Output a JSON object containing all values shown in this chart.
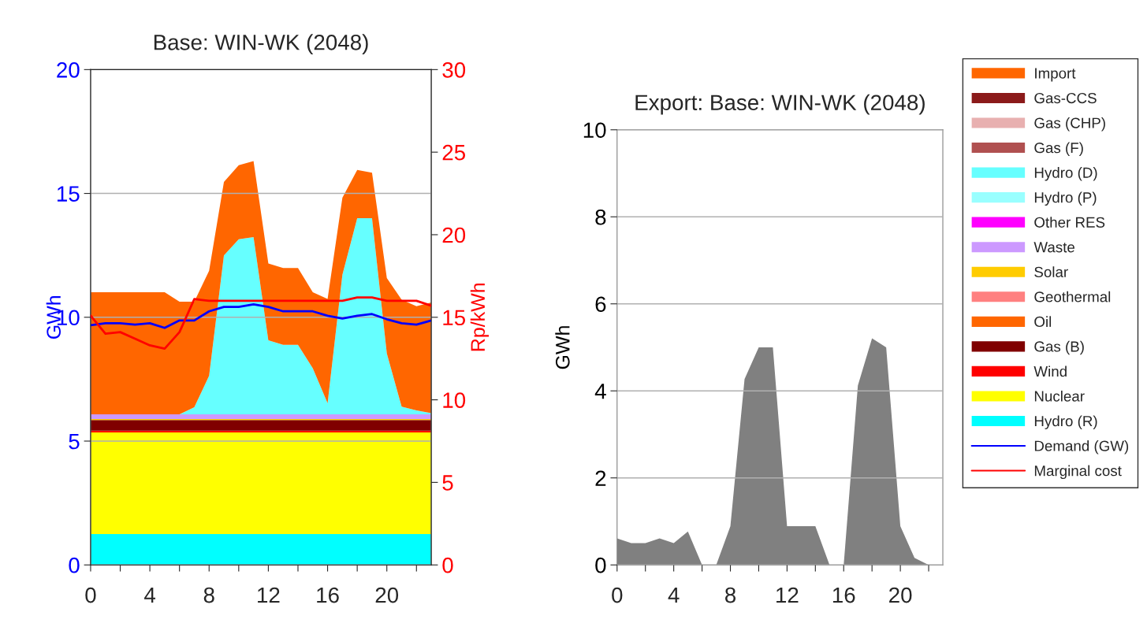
{
  "chart_data": [
    {
      "type": "area",
      "stacked": true,
      "title": "Base: WIN-WK (2048)",
      "ylabel": "GWh",
      "y2label": "Rp/kWh",
      "x": [
        0,
        1,
        2,
        3,
        4,
        5,
        6,
        7,
        8,
        9,
        10,
        11,
        12,
        13,
        14,
        15,
        16,
        17,
        18,
        19,
        20,
        21,
        22,
        23
      ],
      "xlim": [
        0,
        23
      ],
      "xticks": [
        0,
        {
          "value": 2,
          "label": null
        },
        4,
        {
          "value": 6,
          "label": null
        },
        8,
        {
          "value": 10,
          "label": null
        },
        12,
        {
          "value": 14,
          "label": null
        },
        16,
        {
          "value": 18,
          "label": null
        },
        20,
        {
          "value": 22,
          "label": null
        }
      ],
      "ylim": [
        0,
        20
      ],
      "yticks": [
        0,
        5,
        10,
        15,
        20
      ],
      "y2lim": [
        0,
        30
      ],
      "y2ticks": [
        0,
        5,
        10,
        15,
        20,
        25,
        30
      ],
      "grid": "y",
      "legend": "right",
      "series": [
        {
          "name": "Hydro (R)",
          "color": "#00ffff",
          "values": [
            1.25,
            1.25,
            1.25,
            1.25,
            1.25,
            1.25,
            1.25,
            1.25,
            1.25,
            1.25,
            1.25,
            1.25,
            1.25,
            1.25,
            1.25,
            1.25,
            1.25,
            1.25,
            1.25,
            1.25,
            1.25,
            1.25,
            1.25,
            1.25
          ]
        },
        {
          "name": "Nuclear",
          "color": "#ffff00",
          "values": [
            4.1,
            4.1,
            4.1,
            4.1,
            4.1,
            4.1,
            4.1,
            4.1,
            4.1,
            4.1,
            4.1,
            4.1,
            4.1,
            4.1,
            4.1,
            4.1,
            4.1,
            4.1,
            4.1,
            4.1,
            4.1,
            4.1,
            4.1,
            4.1
          ]
        },
        {
          "name": "Wind",
          "color": "#ff0000",
          "values": [
            0.07,
            0.07,
            0.07,
            0.07,
            0.07,
            0.07,
            0.07,
            0.07,
            0.07,
            0.07,
            0.07,
            0.07,
            0.07,
            0.07,
            0.07,
            0.07,
            0.07,
            0.07,
            0.07,
            0.07,
            0.07,
            0.07,
            0.07,
            0.07
          ]
        },
        {
          "name": "Gas (B)",
          "color": "#800000",
          "values": [
            0.43,
            0.43,
            0.43,
            0.43,
            0.43,
            0.43,
            0.43,
            0.43,
            0.43,
            0.43,
            0.43,
            0.43,
            0.43,
            0.43,
            0.43,
            0.43,
            0.43,
            0.43,
            0.43,
            0.43,
            0.43,
            0.43,
            0.43,
            0.43
          ]
        },
        {
          "name": "Oil",
          "color": "#ff6600",
          "values": [
            null,
            null,
            null,
            null,
            null,
            null,
            null,
            null,
            null,
            null,
            null,
            null,
            null,
            null,
            null,
            null,
            null,
            null,
            null,
            null,
            null,
            null,
            null,
            null
          ]
        },
        {
          "name": "Geothermal",
          "color": "#ff8080",
          "values": [
            null,
            null,
            null,
            null,
            null,
            null,
            null,
            null,
            null,
            null,
            null,
            null,
            null,
            null,
            null,
            null,
            null,
            null,
            null,
            null,
            null,
            null,
            null,
            null
          ]
        },
        {
          "name": "Solar",
          "color": "#ffcc00",
          "values": [
            0.04,
            0.04,
            0.04,
            0.04,
            0.04,
            0.04,
            0.04,
            0.04,
            0.04,
            0.04,
            0.04,
            0.04,
            0.04,
            0.04,
            0.04,
            0.04,
            0.04,
            0.04,
            0.04,
            0.04,
            0.04,
            0.04,
            0.04,
            0.04
          ]
        },
        {
          "name": "Waste",
          "color": "#cc99ff",
          "values": [
            0.19,
            0.19,
            0.19,
            0.19,
            0.19,
            0.19,
            0.19,
            0.19,
            0.19,
            0.19,
            0.19,
            0.19,
            0.19,
            0.19,
            0.19,
            0.19,
            0.19,
            0.19,
            0.19,
            0.19,
            0.19,
            0.19,
            0.19,
            0.19
          ]
        },
        {
          "name": "Other RES",
          "color": "#ff00ff",
          "values": [
            null,
            null,
            null,
            null,
            null,
            null,
            null,
            null,
            null,
            null,
            null,
            null,
            null,
            null,
            null,
            null,
            null,
            null,
            null,
            null,
            null,
            null,
            null,
            null
          ]
        },
        {
          "name": "Hydro (P)",
          "color": "#99ffff",
          "values": [
            null,
            null,
            null,
            null,
            null,
            null,
            null,
            null,
            null,
            null,
            null,
            null,
            null,
            null,
            null,
            null,
            null,
            null,
            null,
            null,
            null,
            null,
            null,
            null
          ]
        },
        {
          "name": "Hydro (D)",
          "color": "#66ffff",
          "values": [
            0,
            0,
            0,
            0,
            0,
            0,
            0,
            0.29,
            1.56,
            6.42,
            7.07,
            7.16,
            2.99,
            2.81,
            2.81,
            1.86,
            0.45,
            5.64,
            7.92,
            7.92,
            2.46,
            0.31,
            0.16,
            0.05
          ]
        },
        {
          "name": "Gas (F)",
          "color": "#b05050",
          "values": [
            null,
            null,
            null,
            null,
            null,
            null,
            null,
            null,
            null,
            null,
            null,
            null,
            null,
            null,
            null,
            null,
            null,
            null,
            null,
            null,
            null,
            null,
            null,
            null
          ]
        },
        {
          "name": "Gas (CHP)",
          "color": "#e8b0b0",
          "values": [
            null,
            null,
            null,
            null,
            null,
            null,
            null,
            null,
            null,
            null,
            null,
            null,
            null,
            null,
            null,
            null,
            null,
            null,
            null,
            null,
            null,
            null,
            null,
            null
          ]
        },
        {
          "name": "Gas-CCS",
          "color": "#8b1a1a",
          "values": [
            null,
            null,
            null,
            null,
            null,
            null,
            null,
            null,
            null,
            null,
            null,
            null,
            null,
            null,
            null,
            null,
            null,
            null,
            null,
            null,
            null,
            null,
            null,
            null
          ]
        },
        {
          "name": "Import",
          "color": "#ff6600",
          "values": [
            4.93,
            4.93,
            4.93,
            4.93,
            4.93,
            4.93,
            4.55,
            4.26,
            4.24,
            2.96,
            2.99,
            3.07,
            3.1,
            3.1,
            3.1,
            3.07,
            4.21,
            3.11,
            1.95,
            1.84,
            3.04,
            4.32,
            4.21,
            4.47
          ]
        },
        {
          "name": "Demand (GW)",
          "type": "line",
          "color": "#0000ff",
          "values": [
            9.68,
            9.76,
            9.76,
            9.7,
            9.76,
            9.57,
            9.87,
            9.87,
            10.24,
            10.42,
            10.42,
            10.52,
            10.42,
            10.24,
            10.24,
            10.24,
            10.06,
            9.95,
            10.06,
            10.13,
            9.92,
            9.76,
            9.7,
            9.87
          ]
        },
        {
          "name": "Marginal cost",
          "type": "line",
          "axis": "y2",
          "color": "#ff0000",
          "values": [
            15.1,
            14.0,
            14.1,
            13.7,
            13.3,
            13.1,
            14.1,
            16.1,
            16.0,
            16.0,
            16.0,
            16.0,
            16.0,
            16.0,
            16.0,
            16.0,
            16.0,
            16.0,
            16.2,
            16.2,
            16.0,
            16.0,
            16.0,
            15.7
          ]
        }
      ]
    },
    {
      "type": "area",
      "title": "Export: Base: WIN-WK (2048)",
      "ylabel": "GWh",
      "x": [
        0,
        1,
        2,
        3,
        4,
        5,
        6,
        7,
        8,
        9,
        10,
        11,
        12,
        13,
        14,
        15,
        16,
        17,
        18,
        19,
        20,
        21,
        22,
        23
      ],
      "xlim": [
        0,
        23
      ],
      "xticks": [
        0,
        {
          "value": 2,
          "label": null
        },
        4,
        {
          "value": 6,
          "label": null
        },
        8,
        {
          "value": 10,
          "label": null
        },
        12,
        {
          "value": 14,
          "label": null
        },
        16,
        {
          "value": 18,
          "label": null
        },
        20,
        {
          "value": 22,
          "label": null
        }
      ],
      "ylim": [
        0,
        10
      ],
      "yticks": [
        0,
        2,
        4,
        6,
        8,
        10
      ],
      "grid": "y",
      "series": [
        {
          "color": "#808080",
          "values": [
            0.61,
            0.5,
            0.5,
            0.61,
            0.5,
            0.77,
            0,
            0,
            0.89,
            4.27,
            5.0,
            5.0,
            0.89,
            0.89,
            0.89,
            0,
            0,
            4.12,
            5.21,
            5.0,
            0.89,
            0.16,
            0,
            0
          ]
        }
      ]
    }
  ]
}
